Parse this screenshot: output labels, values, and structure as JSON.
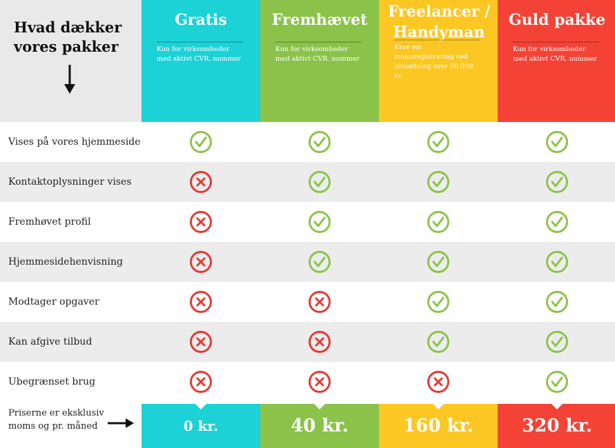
{
  "corner": {
    "title": "Hvad dækker vores pakker",
    "arrow_icon": "arrow-down-icon"
  },
  "plans": [
    {
      "name": "Gratis",
      "desc": "Kun for virksomheder med aktivt CVR. nummer",
      "price": "0 kr.",
      "color": "#1dd2d6"
    },
    {
      "name": "Fremhævet",
      "desc": "Kun for virksomheder med aktivt CVR. nummer",
      "price": "40 kr.",
      "color": "#8bc34a"
    },
    {
      "name": "Freelancer / Handyman",
      "desc": "Krav om momsregistrering ved omsætning over 50.000 kr.",
      "price": "160 kr.",
      "color": "#fdc723"
    },
    {
      "name": "Guld pakke",
      "desc": "Kun for virksomheder med aktivt CVR. nummer",
      "price": "320 kr.",
      "color": "#f44336"
    }
  ],
  "features": [
    {
      "label": "Vises på vores hjemmeside",
      "included": [
        true,
        true,
        true,
        true
      ]
    },
    {
      "label": "Kontaktoplysninger vises",
      "included": [
        false,
        true,
        true,
        true
      ]
    },
    {
      "label": "Fremhøvet profil",
      "included": [
        false,
        true,
        true,
        true
      ]
    },
    {
      "label": "Hjemmesidehenvisning",
      "included": [
        false,
        true,
        true,
        true
      ]
    },
    {
      "label": "Modtager opgaver",
      "included": [
        false,
        false,
        true,
        true
      ]
    },
    {
      "label": "Kan afgive tilbud",
      "included": [
        false,
        false,
        true,
        true
      ]
    },
    {
      "label": "Ubegrænset brug",
      "included": [
        false,
        false,
        false,
        true
      ]
    }
  ],
  "icons": {
    "included": "check-circle-icon",
    "excluded": "x-circle-icon",
    "price_arrow": "arrow-right-icon"
  },
  "colors": {
    "check": "#8bc34a",
    "cross": "#e53935",
    "row_alt": "#ececec"
  },
  "price_note": "Priserne er eksklusiv moms og pr. måned"
}
